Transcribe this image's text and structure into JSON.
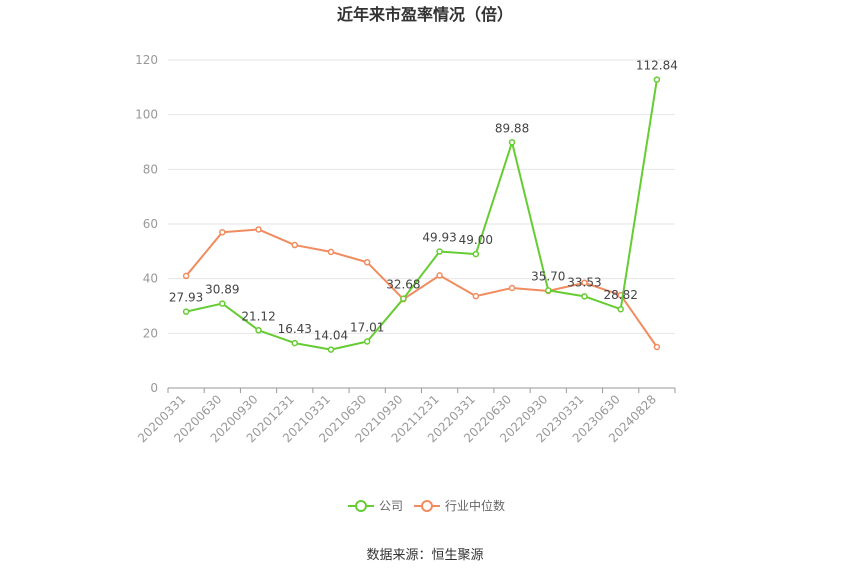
{
  "chart_data": {
    "type": "line",
    "title": "近年来市盈率情况（倍）",
    "categories": [
      "20200331",
      "20200630",
      "20200930",
      "20201231",
      "20210331",
      "20210630",
      "20210930",
      "20211231",
      "20220331",
      "20220630",
      "20220930",
      "20230331",
      "20230630",
      "20240828"
    ],
    "series": [
      {
        "name": "公司",
        "color": "#66cc33",
        "values": [
          27.93,
          30.89,
          21.12,
          16.43,
          14.04,
          17.01,
          32.68,
          49.93,
          49.0,
          89.88,
          35.7,
          33.53,
          28.82,
          112.84
        ],
        "labels": [
          "27.93",
          "30.89",
          "21.12",
          "16.43",
          "14.04",
          "17.01",
          "32.68",
          "49.93",
          "49.00",
          "89.88",
          "35.70",
          "33.53",
          "28.82",
          "112.84"
        ]
      },
      {
        "name": "行业中位数",
        "color": "#f08c5f",
        "values": [
          41,
          57,
          58,
          52.3,
          49.8,
          46,
          32.5,
          41.2,
          33.6,
          36.6,
          35.5,
          38.5,
          34,
          15
        ]
      }
    ],
    "yticks": [
      0,
      20,
      40,
      60,
      80,
      100,
      120
    ],
    "ylim": [
      0,
      120
    ],
    "grid": true,
    "legend": "bottom-center"
  },
  "source": "数据来源：恒生聚源"
}
